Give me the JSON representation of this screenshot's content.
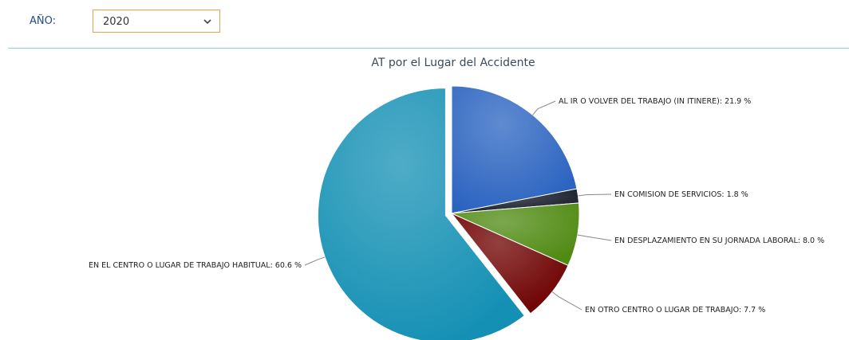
{
  "filter": {
    "label": "AÑO:",
    "value": "2020"
  },
  "chart_data": {
    "type": "pie",
    "title": "AT por el Lugar del Accidente",
    "categories": [
      "AL IR O VOLVER DEL TRABAJO (IN ITINERE)",
      "EN COMISION DE SERVICIOS",
      "EN DESPLAZAMIENTO EN SU JORNADA LABORAL",
      "EN OTRO CENTRO O LUGAR DE TRABAJO",
      "EN EL CENTRO O LUGAR DE TRABAJO HABITUAL"
    ],
    "values": [
      21.9,
      1.8,
      8.0,
      7.7,
      60.6
    ],
    "value_labels": [
      ": 21.9 %",
      ": 1.8 %",
      ": 8.0 %",
      ": 7.7 %",
      ": 60.6 %"
    ],
    "colors": [
      "#2a63c0",
      "#161c2a",
      "#4f8a12",
      "#6e0000",
      "#1490b4"
    ]
  }
}
